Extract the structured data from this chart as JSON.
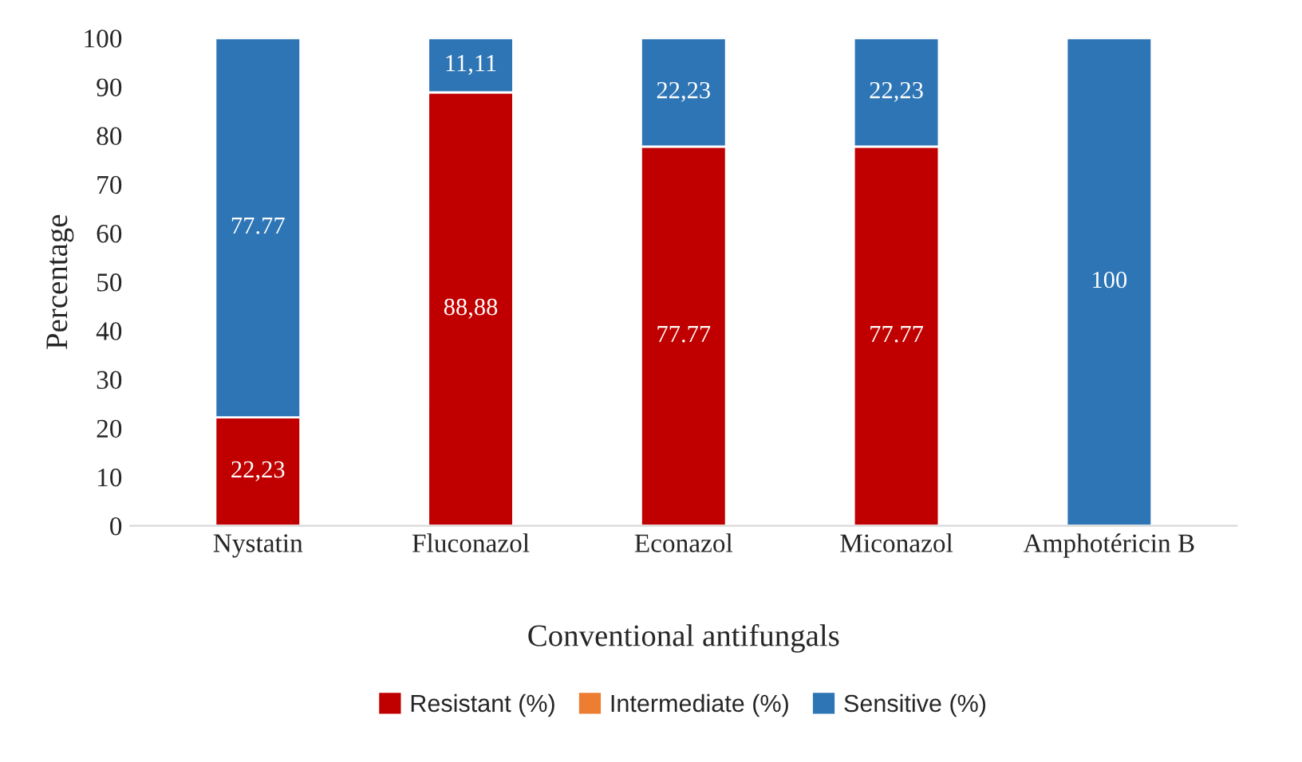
{
  "chart_data": {
    "type": "bar",
    "stacked": true,
    "xlabel": "Conventional antifungals",
    "ylabel": "Percentage",
    "categories": [
      "Nystatin",
      "Fluconazol",
      "Econazol",
      "Miconazol",
      "Amphotéricin B"
    ],
    "series": [
      {
        "name": "Resistant (%)",
        "color": "#c00000",
        "values": [
          22.23,
          88.88,
          77.77,
          77.77,
          0
        ],
        "value_labels": [
          "22,23",
          "88,88",
          "77.77",
          "77.77",
          null
        ]
      },
      {
        "name": "Intermediate (%)",
        "color": "#ed7d31",
        "values": [
          0,
          0,
          0,
          0,
          0
        ],
        "value_labels": [
          null,
          null,
          null,
          null,
          null
        ]
      },
      {
        "name": "Sensitive (%)",
        "color": "#2e75b6",
        "values": [
          77.77,
          11.11,
          22.23,
          22.23,
          100
        ],
        "value_labels": [
          "77.77",
          "11,11",
          "22,23",
          "22,23",
          "100"
        ]
      }
    ],
    "ylim": [
      0,
      100
    ],
    "yticks": [
      0,
      10,
      20,
      30,
      40,
      50,
      60,
      70,
      80,
      90,
      100
    ],
    "grid": false,
    "legend": "bottom"
  }
}
